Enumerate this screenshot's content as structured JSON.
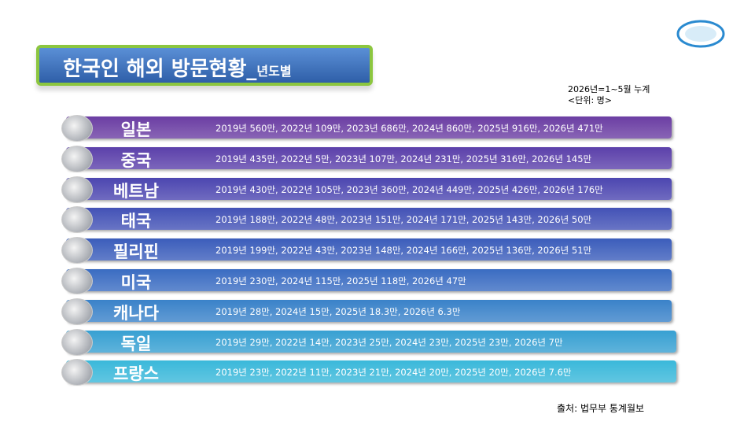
{
  "header": {
    "title": "한국인 해외 방문현황_",
    "title_suffix": "년도별",
    "note": "2026년=1~5월 누계",
    "unit": "<단위: 명>"
  },
  "rows": [
    {
      "country": "일본",
      "detail": "2019년 560만, 2022년 109만, 2023년 686만, 2024년 860만, 2025년 916만, 2026년 471만"
    },
    {
      "country": "중국",
      "detail": "2019년 435만, 2022년 5만, 2023년 107만, 2024년 231만, 2025년 316만, 2026년 145만"
    },
    {
      "country": "베트남",
      "detail": "2019년 430만, 2022년 105만, 2023년 360만, 2024년 449만, 2025년 426만, 2026년 176만"
    },
    {
      "country": "태국",
      "detail": "2019년 188만, 2022년 48만, 2023년 151만, 2024년 171만, 2025년 143만, 2026년 50만"
    },
    {
      "country": "필리핀",
      "detail": "2019년 199만, 2022년 43만, 2023년 148만, 2024년 166만, 2025년 136만, 2026년 51만"
    },
    {
      "country": "미국",
      "detail": "2019년 230만,  2024년 115만, 2025년 118만, 2026년 47만"
    },
    {
      "country": "캐나다",
      "detail": "2019년 28만,  2024년 15만, 2025년 18.3만, 2026년 6.3만"
    },
    {
      "country": "독일",
      "detail": "2019년 29만, 2022년 14만, 2023년 25만, 2024년 23만, 2025년 23만, 2026년 7만"
    },
    {
      "country": "프랑스",
      "detail": "2019년 23만, 2022년 11만, 2023년 21만, 2024년 20만, 2025년 20만, 2026년 7.6만"
    }
  ],
  "footer": {
    "source": "출처: 법무부 통계월보"
  }
}
